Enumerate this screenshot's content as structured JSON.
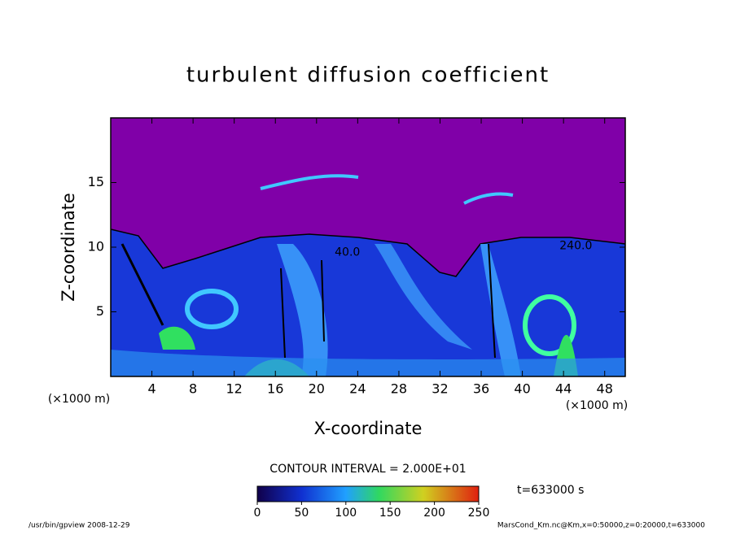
{
  "chart_data": {
    "type": "contour",
    "title": "turbulent diffusion coefficient",
    "xlabel": "X-coordinate",
    "ylabel": "Z-coordinate",
    "x_unit_label": "(×1000 m)",
    "y_unit_label": "(×1000 m)",
    "xlim": [
      0,
      50
    ],
    "ylim": [
      0,
      20
    ],
    "xticks": [
      4,
      8,
      12,
      16,
      20,
      24,
      28,
      32,
      36,
      40,
      44,
      48
    ],
    "yticks": [
      5,
      10,
      15
    ],
    "contour_labels": [
      {
        "x": 23,
        "y": 9.6,
        "label": "40.0"
      },
      {
        "x": 45.2,
        "y": 10.1,
        "label": "240.0"
      }
    ],
    "contour_interval": "CONTOUR INTERVAL = 2.000E+01",
    "colorbar": {
      "lim": [
        0,
        250
      ],
      "ticks": [
        0,
        50,
        100,
        150,
        200,
        250
      ]
    },
    "time_label": "t=633000 s",
    "footer_left": "/usr/bin/gpview   2008-12-29",
    "footer_right": "MarsCond_Km.nc@Km,x=0:50000,z=0:20000,t=633000"
  }
}
